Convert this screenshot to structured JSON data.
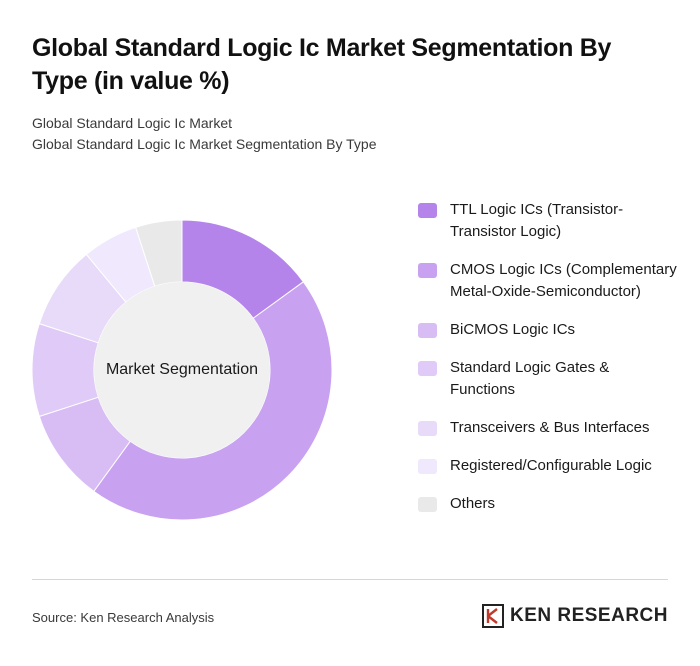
{
  "header": {
    "title": "Global Standard Logic Ic Market Segmentation By Type (in value %)",
    "breadcrumb_1": "Global Standard Logic Ic Market",
    "breadcrumb_2": "Global Standard Logic Ic Market Segmentation By Type"
  },
  "chart_data": {
    "type": "pie",
    "donut": true,
    "center_label": "Market Segmentation",
    "legend_position": "right",
    "categories": [
      "TTL Logic ICs (Transistor-Transistor Logic)",
      "CMOS Logic ICs (Complementary Metal-Oxide-Semiconductor)",
      "BiCMOS Logic ICs",
      "Standard Logic Gates & Functions",
      "Transceivers & Bus Interfaces",
      "Registered/Configurable Logic",
      "Others"
    ],
    "values": [
      15,
      45,
      10,
      10,
      9,
      6,
      5
    ],
    "colors": [
      "#b584eb",
      "#c8a1f0",
      "#d8bdf5",
      "#e0caf7",
      "#e8daf9",
      "#f0e8fc",
      "#e9e9e9"
    ]
  },
  "footer": {
    "source": "Source: Ken Research Analysis",
    "brand": "KEN RESEARCH"
  }
}
